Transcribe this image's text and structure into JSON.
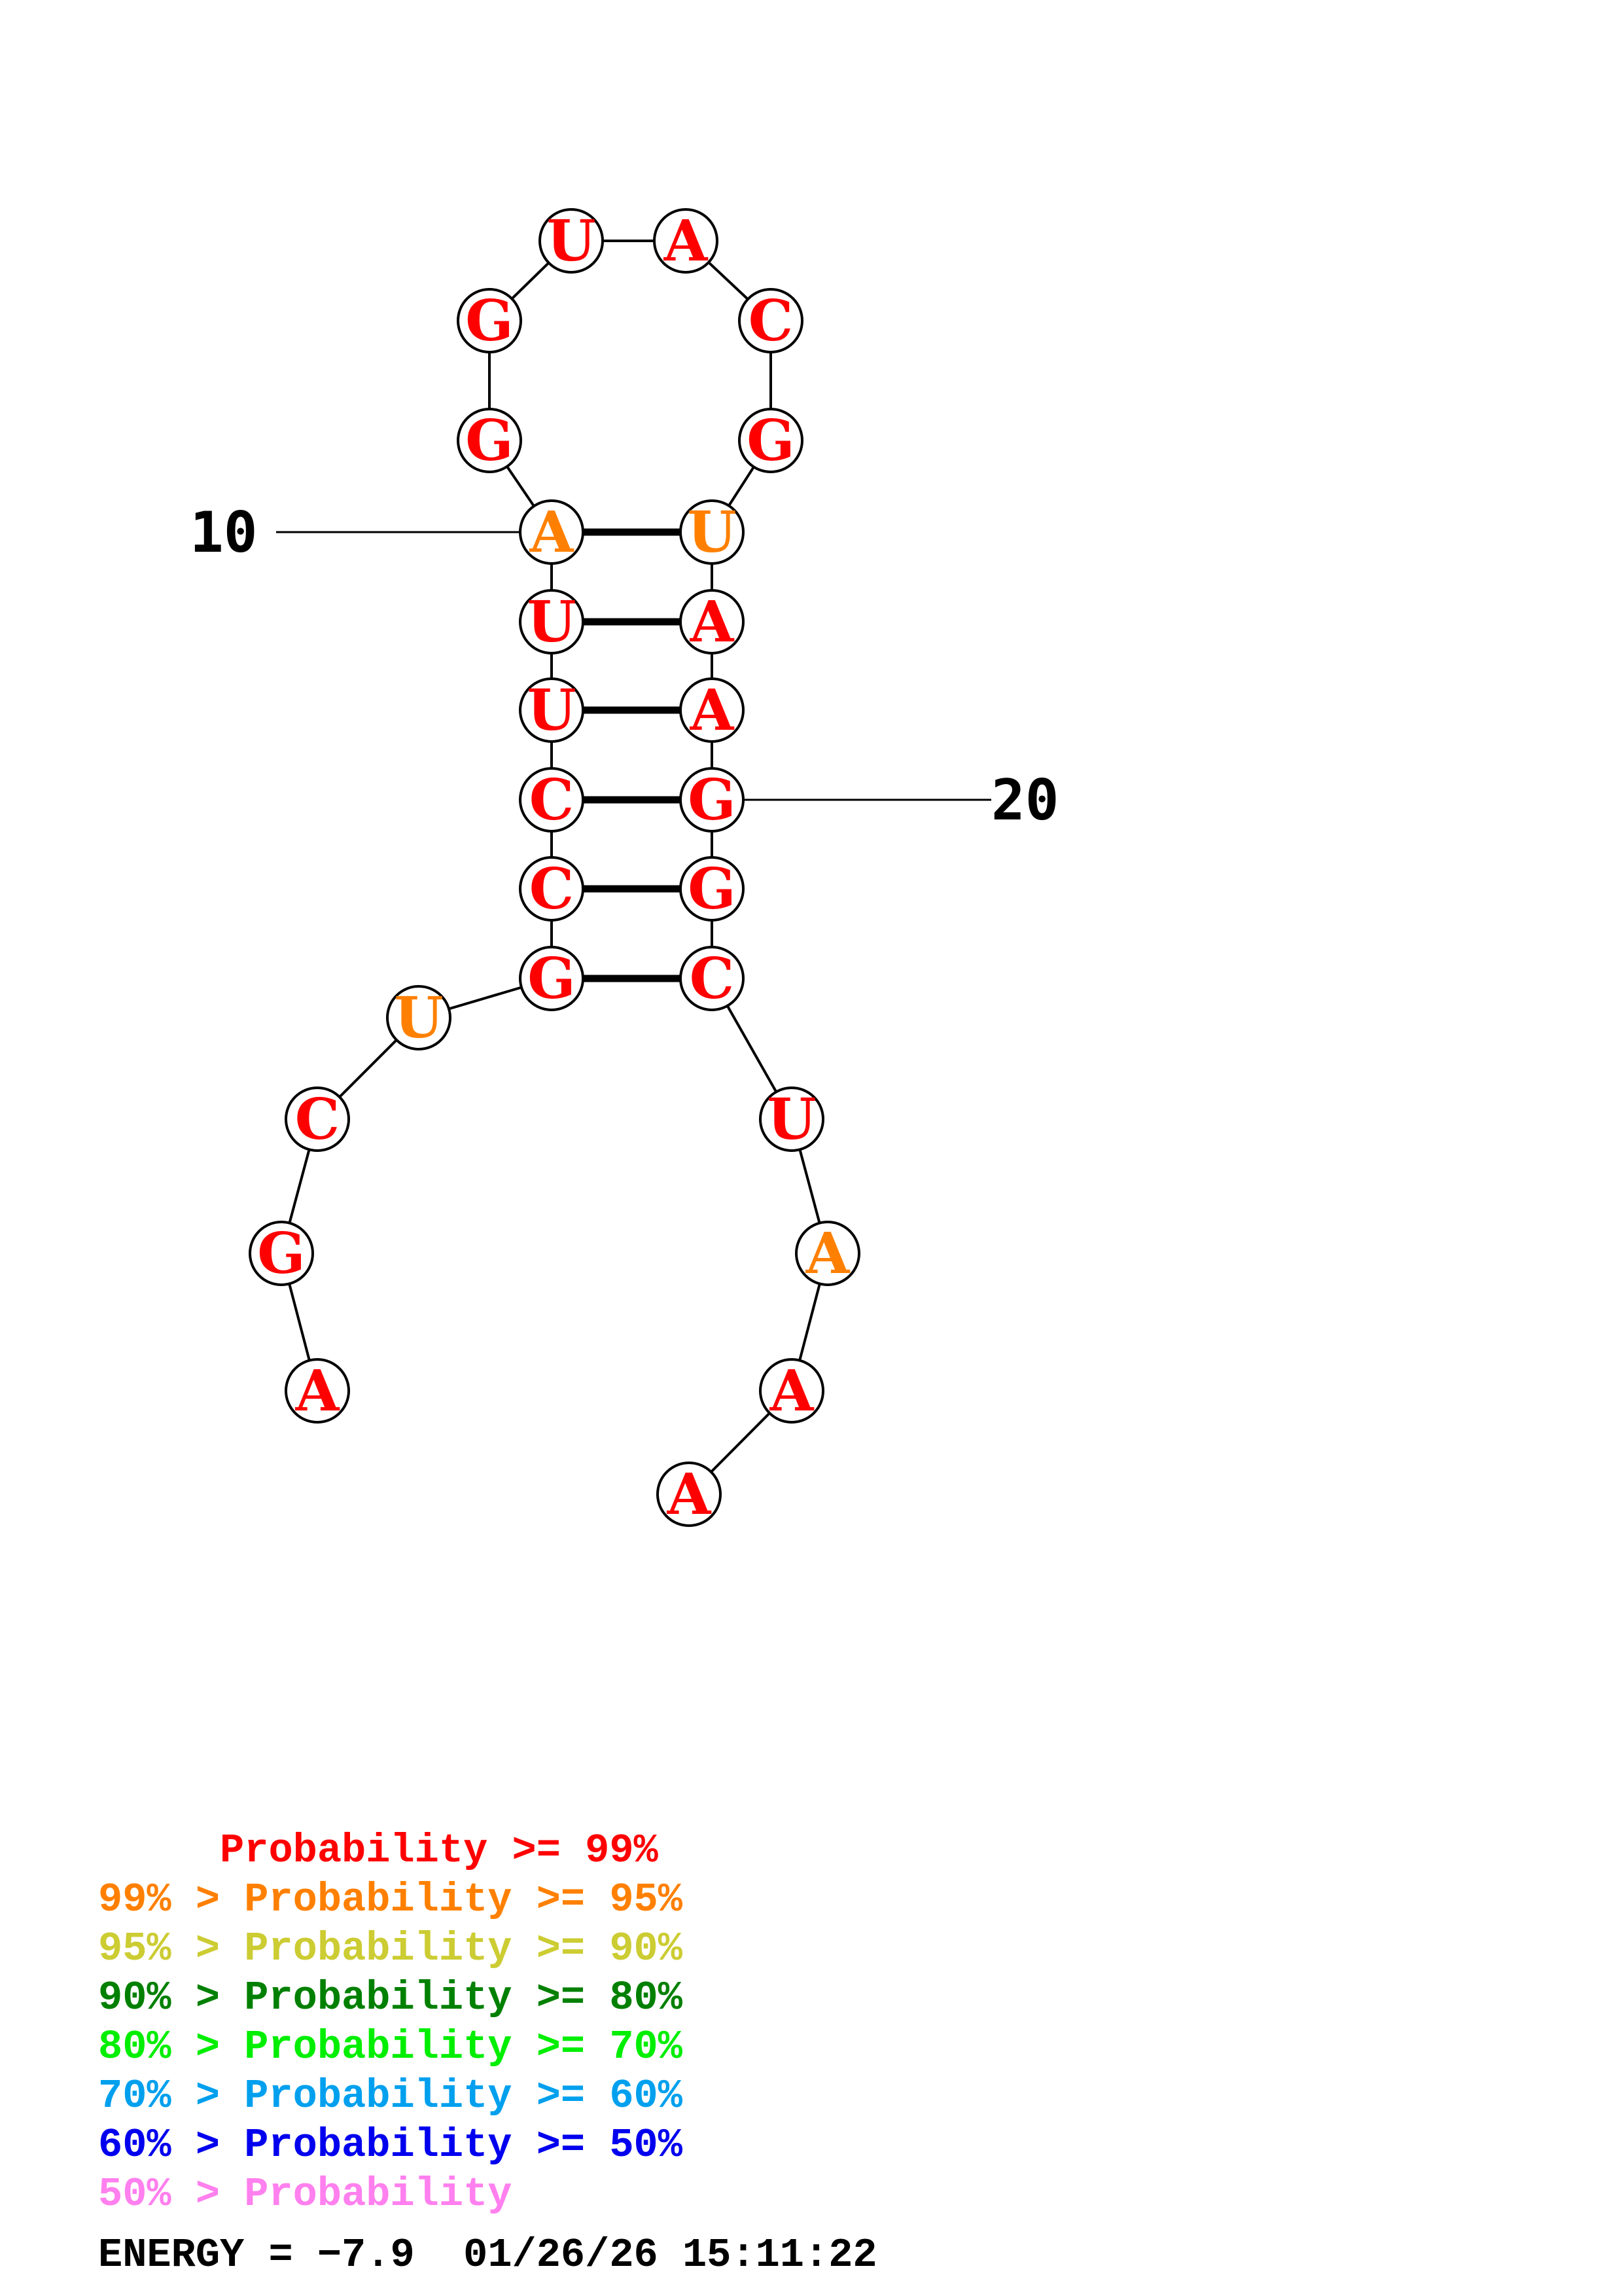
{
  "sequence": [
    "A",
    "G",
    "C",
    "U",
    "G",
    "C",
    "C",
    "U",
    "U",
    "A",
    "G",
    "G",
    "U",
    "A",
    "C",
    "G",
    "U",
    "A",
    "A",
    "G",
    "G",
    "C",
    "U",
    "A",
    "A",
    "A"
  ],
  "sequence_note": "",
  "nucleotides": [
    {
      "index": 1,
      "base": "A",
      "prob_color": "red"
    },
    {
      "index": 2,
      "base": "G",
      "prob_color": "red"
    },
    {
      "index": 3,
      "base": "C",
      "prob_color": "red"
    },
    {
      "index": 4,
      "base": "U",
      "prob_color": "orange"
    },
    {
      "index": 5,
      "base": "G",
      "prob_color": "red"
    },
    {
      "index": 6,
      "base": "C",
      "prob_color": "red"
    },
    {
      "index": 7,
      "base": "C",
      "prob_color": "red"
    },
    {
      "index": 8,
      "base": "U",
      "prob_color": "red"
    },
    {
      "index": 9,
      "base": "U",
      "prob_color": "red"
    },
    {
      "index": 10,
      "base": "A",
      "prob_color": "orange"
    },
    {
      "index": 11,
      "base": "G",
      "prob_color": "red"
    },
    {
      "index": 12,
      "base": "G",
      "prob_color": "red"
    },
    {
      "index": 13,
      "base": "U",
      "prob_color": "red"
    },
    {
      "index": 14,
      "base": "A",
      "prob_color": "red"
    },
    {
      "index": 15,
      "base": "C",
      "prob_color": "red"
    },
    {
      "index": 16,
      "base": "G",
      "prob_color": "red"
    },
    {
      "index": 17,
      "base": "U",
      "prob_color": "orange"
    },
    {
      "index": 18,
      "base": "A",
      "prob_color": "red"
    },
    {
      "index": 19,
      "base": "A",
      "prob_color": "red"
    },
    {
      "index": 20,
      "base": "G",
      "prob_color": "red"
    },
    {
      "index": 21,
      "base": "G",
      "prob_color": "red"
    },
    {
      "index": 22,
      "base": "C",
      "prob_color": "red"
    },
    {
      "index": 23,
      "base": "U",
      "prob_color": "red"
    },
    {
      "index": 24,
      "base": "A",
      "prob_color": "orange"
    },
    {
      "index": 25,
      "base": "A",
      "prob_color": "red"
    },
    {
      "index": 26,
      "base": "A",
      "prob_color": "red"
    }
  ],
  "pairs": [
    [
      5,
      22
    ],
    [
      6,
      21
    ],
    [
      7,
      20
    ],
    [
      8,
      19
    ],
    [
      9,
      18
    ],
    [
      10,
      17
    ]
  ],
  "position_labels": [
    {
      "index": 10,
      "text": "10"
    },
    {
      "index": 20,
      "text": "20"
    }
  ],
  "colors": {
    "red": "#ff0000",
    "orange": "#ff8000",
    "yellow": "#cccc33",
    "darkgreen": "#008000",
    "green": "#00ee00",
    "lightblue": "#00a0ee",
    "blue": "#0000ee",
    "pink": "#ff80ee"
  },
  "legend": [
    {
      "text": "     Probability >= 99%",
      "color": "red"
    },
    {
      "text": "99% > Probability >= 95%",
      "color": "orange"
    },
    {
      "text": "95% > Probability >= 90%",
      "color": "yellow"
    },
    {
      "text": "90% > Probability >= 80%",
      "color": "darkgreen"
    },
    {
      "text": "80% > Probability >= 70%",
      "color": "green"
    },
    {
      "text": "70% > Probability >= 60%",
      "color": "lightblue"
    },
    {
      "text": "60% > Probability >= 50%",
      "color": "blue"
    },
    {
      "text": "50% > Probability",
      "color": "pink"
    }
  ],
  "footer": {
    "energy": "ENERGY = −7.9",
    "timestamp": "01/26/26 15:11:22"
  }
}
